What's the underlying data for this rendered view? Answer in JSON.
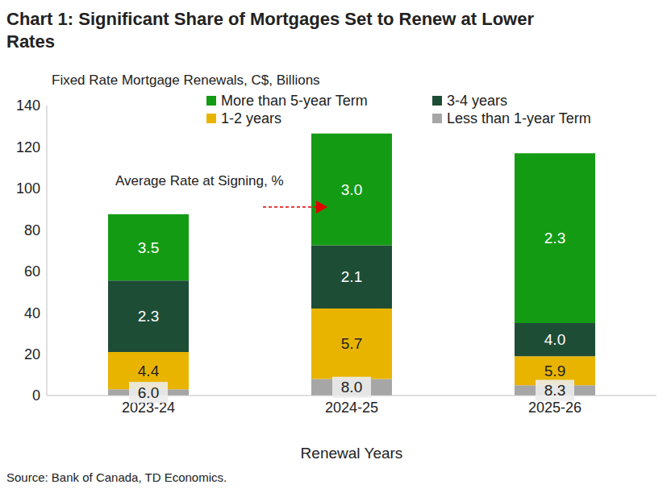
{
  "chart_data": {
    "type": "bar",
    "title": "Chart 1: Significant Share of Mortgages Set to Renew at Lower Rates",
    "subtitle": "Fixed Rate Mortgage Renewals, C$, Billions",
    "x_label": "Renewal Years",
    "annotation": "Average Rate at Signing, %",
    "source": "Source: Bank of Canada, TD Economics.",
    "categories": [
      "2023-24",
      "2024-25",
      "2025-26"
    ],
    "stacked": true,
    "grid": false,
    "legend": "top",
    "ylim": [
      0,
      140
    ],
    "yticks": [
      0,
      20,
      40,
      60,
      80,
      100,
      120,
      140
    ],
    "series": [
      {
        "name": "Less than 1-year Term",
        "color": "#a6a6a6",
        "values": [
          3,
          8,
          5
        ],
        "rates": [
          6.0,
          8.0,
          8.3
        ],
        "rate_labels": [
          "6.0",
          "8.0",
          "8.3"
        ]
      },
      {
        "name": "1-2 years",
        "color": "#e8b400",
        "values": [
          18,
          34,
          14
        ],
        "rates": [
          4.4,
          5.7,
          5.9
        ],
        "rate_labels": [
          "4.4",
          "5.7",
          "5.9"
        ]
      },
      {
        "name": "3-4 years",
        "color": "#1e4d36",
        "values": [
          34.5,
          30.5,
          16
        ],
        "rates": [
          2.3,
          2.1,
          4.0
        ],
        "rate_labels": [
          "2.3",
          "2.1",
          "4.0"
        ]
      },
      {
        "name": "More than 5-year Term",
        "color": "#149b14",
        "values": [
          32,
          54,
          82
        ],
        "rates": [
          3.5,
          3.0,
          2.3
        ],
        "rate_labels": [
          "3.5",
          "3.0",
          "2.3"
        ]
      }
    ]
  }
}
